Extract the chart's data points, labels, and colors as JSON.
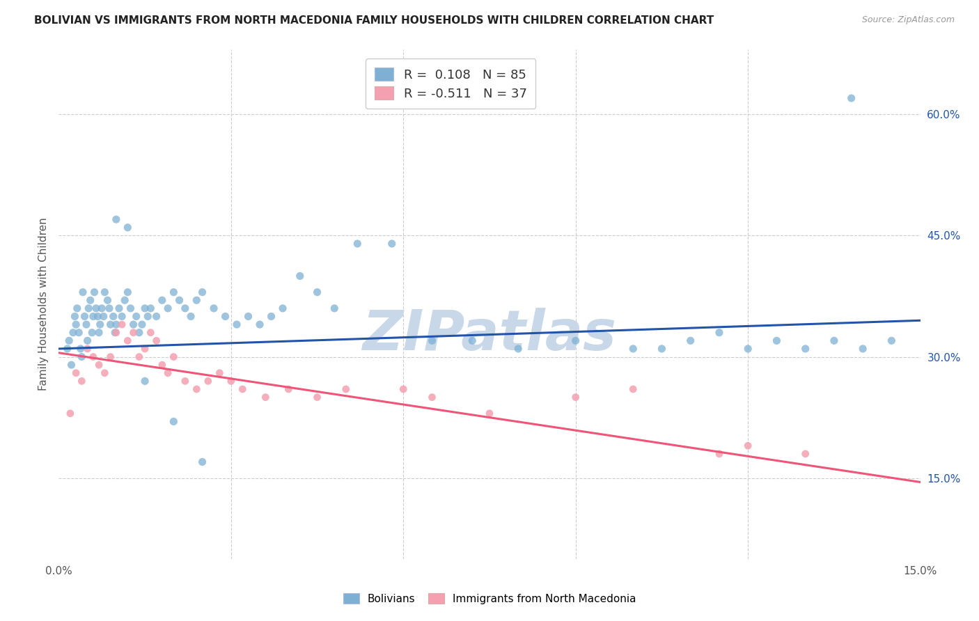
{
  "title": "BOLIVIAN VS IMMIGRANTS FROM NORTH MACEDONIA FAMILY HOUSEHOLDS WITH CHILDREN CORRELATION CHART",
  "source": "Source: ZipAtlas.com",
  "ylabel": "Family Households with Children",
  "xmin": 0.0,
  "xmax": 15.0,
  "ymin": 5.0,
  "ymax": 68.0,
  "yticks": [
    15.0,
    30.0,
    45.0,
    60.0
  ],
  "xticks": [
    0.0,
    3.0,
    6.0,
    9.0,
    12.0,
    15.0
  ],
  "blue_R": 0.108,
  "blue_N": 85,
  "pink_R": -0.511,
  "pink_N": 37,
  "blue_color": "#7EB0D4",
  "pink_color": "#F4A0B0",
  "blue_line_color": "#2255AA",
  "pink_line_color": "#EE5577",
  "watermark": "ZIPatlas",
  "watermark_color": "#C8D8E8",
  "background_color": "#FFFFFF",
  "grid_color": "#CCCCCC",
  "title_color": "#222222",
  "source_color": "#999999",
  "blue_x": [
    0.15,
    0.18,
    0.22,
    0.25,
    0.28,
    0.3,
    0.32,
    0.35,
    0.38,
    0.4,
    0.42,
    0.45,
    0.48,
    0.5,
    0.52,
    0.55,
    0.58,
    0.6,
    0.62,
    0.65,
    0.68,
    0.7,
    0.72,
    0.75,
    0.78,
    0.8,
    0.85,
    0.88,
    0.9,
    0.95,
    0.98,
    1.0,
    1.05,
    1.1,
    1.15,
    1.2,
    1.25,
    1.3,
    1.35,
    1.4,
    1.45,
    1.5,
    1.55,
    1.6,
    1.7,
    1.8,
    1.9,
    2.0,
    2.1,
    2.2,
    2.3,
    2.4,
    2.5,
    2.7,
    2.9,
    3.1,
    3.3,
    3.5,
    3.7,
    3.9,
    4.2,
    4.5,
    4.8,
    5.2,
    5.8,
    6.5,
    7.2,
    8.0,
    9.0,
    10.0,
    10.5,
    11.0,
    11.5,
    12.0,
    12.5,
    13.0,
    13.5,
    14.0,
    14.5,
    1.0,
    1.2,
    1.5,
    2.0,
    2.5,
    13.8
  ],
  "blue_y": [
    31,
    32,
    29,
    33,
    35,
    34,
    36,
    33,
    31,
    30,
    38,
    35,
    34,
    32,
    36,
    37,
    33,
    35,
    38,
    36,
    35,
    33,
    34,
    36,
    35,
    38,
    37,
    36,
    34,
    35,
    33,
    34,
    36,
    35,
    37,
    38,
    36,
    34,
    35,
    33,
    34,
    36,
    35,
    36,
    35,
    37,
    36,
    38,
    37,
    36,
    35,
    37,
    38,
    36,
    35,
    34,
    35,
    34,
    35,
    36,
    40,
    38,
    36,
    44,
    44,
    32,
    32,
    31,
    32,
    31,
    31,
    32,
    33,
    31,
    32,
    31,
    32,
    31,
    32,
    47,
    46,
    27,
    22,
    17,
    62
  ],
  "pink_x": [
    0.2,
    0.3,
    0.4,
    0.5,
    0.6,
    0.7,
    0.8,
    0.9,
    1.0,
    1.1,
    1.2,
    1.3,
    1.4,
    1.5,
    1.6,
    1.7,
    1.8,
    1.9,
    2.0,
    2.2,
    2.4,
    2.6,
    2.8,
    3.0,
    3.2,
    3.6,
    4.0,
    4.5,
    5.0,
    6.0,
    6.5,
    7.5,
    9.0,
    10.0,
    11.5,
    12.0,
    13.0
  ],
  "pink_y": [
    23,
    28,
    27,
    31,
    30,
    29,
    28,
    30,
    33,
    34,
    32,
    33,
    30,
    31,
    33,
    32,
    29,
    28,
    30,
    27,
    26,
    27,
    28,
    27,
    26,
    25,
    26,
    25,
    26,
    26,
    25,
    23,
    25,
    26,
    18,
    19,
    18
  ],
  "blue_trend_x": [
    0.0,
    15.0
  ],
  "blue_trend_y": [
    31.0,
    34.5
  ],
  "pink_trend_x": [
    0.0,
    15.0
  ],
  "pink_trend_y": [
    30.5,
    14.5
  ]
}
